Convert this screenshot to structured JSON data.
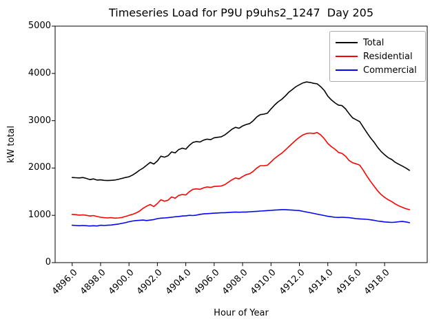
{
  "chart_data": {
    "type": "line",
    "title": "Timeseries Load for P9U p9uhs2_1247  Day 205",
    "xlabel": "Hour of Year",
    "ylabel": "kW total",
    "xlim": [
      4894.8,
      4921.0
    ],
    "ylim": [
      0,
      5000
    ],
    "grid": false,
    "legend_position": "upper right",
    "x": {
      "start": 4896.0,
      "step": 0.25,
      "count": 96
    },
    "x_ticks": {
      "values": [
        4896,
        4898,
        4900,
        4902,
        4904,
        4906,
        4908,
        4910,
        4912,
        4914,
        4916,
        4918
      ],
      "labels": [
        "4896.0",
        "4898.0",
        "4900.0",
        "4902.0",
        "4904.0",
        "4906.0",
        "4908.0",
        "4910.0",
        "4912.0",
        "4914.0",
        "4916.0",
        "4918.0"
      ]
    },
    "y_ticks": {
      "values": [
        0,
        1000,
        2000,
        3000,
        4000,
        5000
      ],
      "labels": [
        "0",
        "1000",
        "2000",
        "3000",
        "4000",
        "5000"
      ]
    },
    "series": [
      {
        "name": "Total",
        "color": "#000000",
        "values": [
          1800,
          1795,
          1790,
          1800,
          1780,
          1755,
          1770,
          1745,
          1750,
          1740,
          1735,
          1740,
          1745,
          1760,
          1780,
          1800,
          1815,
          1850,
          1900,
          1955,
          2000,
          2060,
          2120,
          2085,
          2150,
          2250,
          2230,
          2260,
          2340,
          2320,
          2390,
          2420,
          2400,
          2480,
          2540,
          2560,
          2550,
          2590,
          2610,
          2600,
          2640,
          2650,
          2660,
          2700,
          2760,
          2820,
          2860,
          2840,
          2890,
          2920,
          2940,
          3000,
          3080,
          3130,
          3140,
          3160,
          3250,
          3330,
          3400,
          3450,
          3520,
          3600,
          3660,
          3720,
          3760,
          3800,
          3820,
          3810,
          3790,
          3780,
          3720,
          3640,
          3520,
          3440,
          3380,
          3330,
          3320,
          3250,
          3150,
          3060,
          3020,
          2980,
          2860,
          2750,
          2640,
          2550,
          2440,
          2350,
          2280,
          2220,
          2180,
          2120,
          2080,
          2040,
          2000,
          1950
        ]
      },
      {
        "name": "Residential",
        "color": "#ff0000",
        "values": [
          1020,
          1015,
          1005,
          1010,
          1000,
          985,
          995,
          975,
          960,
          950,
          945,
          950,
          940,
          945,
          955,
          975,
          1000,
          1020,
          1050,
          1090,
          1150,
          1195,
          1230,
          1185,
          1250,
          1330,
          1300,
          1320,
          1390,
          1360,
          1420,
          1440,
          1430,
          1500,
          1550,
          1560,
          1550,
          1580,
          1600,
          1590,
          1610,
          1615,
          1620,
          1650,
          1700,
          1750,
          1790,
          1770,
          1820,
          1860,
          1880,
          1930,
          2000,
          2050,
          2050,
          2060,
          2130,
          2200,
          2260,
          2310,
          2380,
          2450,
          2520,
          2590,
          2650,
          2700,
          2730,
          2740,
          2730,
          2750,
          2700,
          2620,
          2520,
          2450,
          2400,
          2330,
          2310,
          2250,
          2160,
          2110,
          2090,
          2060,
          1950,
          1830,
          1720,
          1620,
          1520,
          1440,
          1380,
          1330,
          1290,
          1240,
          1200,
          1170,
          1140,
          1120
        ]
      },
      {
        "name": "Commercial",
        "color": "#0000ff",
        "values": [
          790,
          785,
          780,
          785,
          780,
          775,
          780,
          775,
          790,
          785,
          790,
          795,
          805,
          815,
          830,
          845,
          865,
          880,
          890,
          895,
          900,
          890,
          900,
          910,
          930,
          940,
          945,
          950,
          960,
          970,
          975,
          985,
          990,
          1000,
          995,
          1005,
          1020,
          1030,
          1035,
          1040,
          1045,
          1050,
          1055,
          1055,
          1060,
          1065,
          1070,
          1065,
          1070,
          1070,
          1075,
          1080,
          1085,
          1090,
          1095,
          1100,
          1105,
          1110,
          1115,
          1120,
          1120,
          1115,
          1110,
          1105,
          1100,
          1085,
          1070,
          1055,
          1040,
          1025,
          1010,
          995,
          980,
          970,
          960,
          955,
          960,
          955,
          950,
          940,
          930,
          925,
          920,
          915,
          905,
          895,
          880,
          870,
          860,
          855,
          850,
          855,
          865,
          870,
          860,
          845
        ]
      }
    ]
  }
}
